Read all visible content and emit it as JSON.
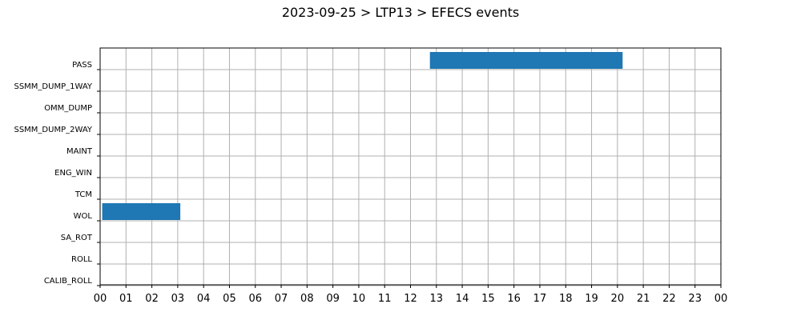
{
  "chart_data": {
    "type": "bar",
    "title": "2023-09-25 > LTP13 > EFECS events",
    "xlabel": "",
    "ylabel": "",
    "x_ticks": [
      "00",
      "01",
      "02",
      "03",
      "04",
      "05",
      "06",
      "07",
      "08",
      "09",
      "10",
      "11",
      "12",
      "13",
      "14",
      "15",
      "16",
      "17",
      "18",
      "19",
      "20",
      "21",
      "22",
      "23",
      "00"
    ],
    "xlim": [
      0,
      24
    ],
    "grid": true,
    "categories": [
      "PASS",
      "SSMM_DUMP_1WAY",
      "OMM_DUMP",
      "SSMM_DUMP_2WAY",
      "MAINT",
      "ENG_WIN",
      "TCM",
      "WOL",
      "SA_ROT",
      "ROLL",
      "CALIB_ROLL"
    ],
    "bar_color": "#1f77b4",
    "grid_color": "#b0b0b0",
    "events": [
      {
        "category": "PASS",
        "start": 12.75,
        "end": 20.2
      },
      {
        "category": "WOL",
        "start": 0.08,
        "end": 3.1
      }
    ]
  }
}
